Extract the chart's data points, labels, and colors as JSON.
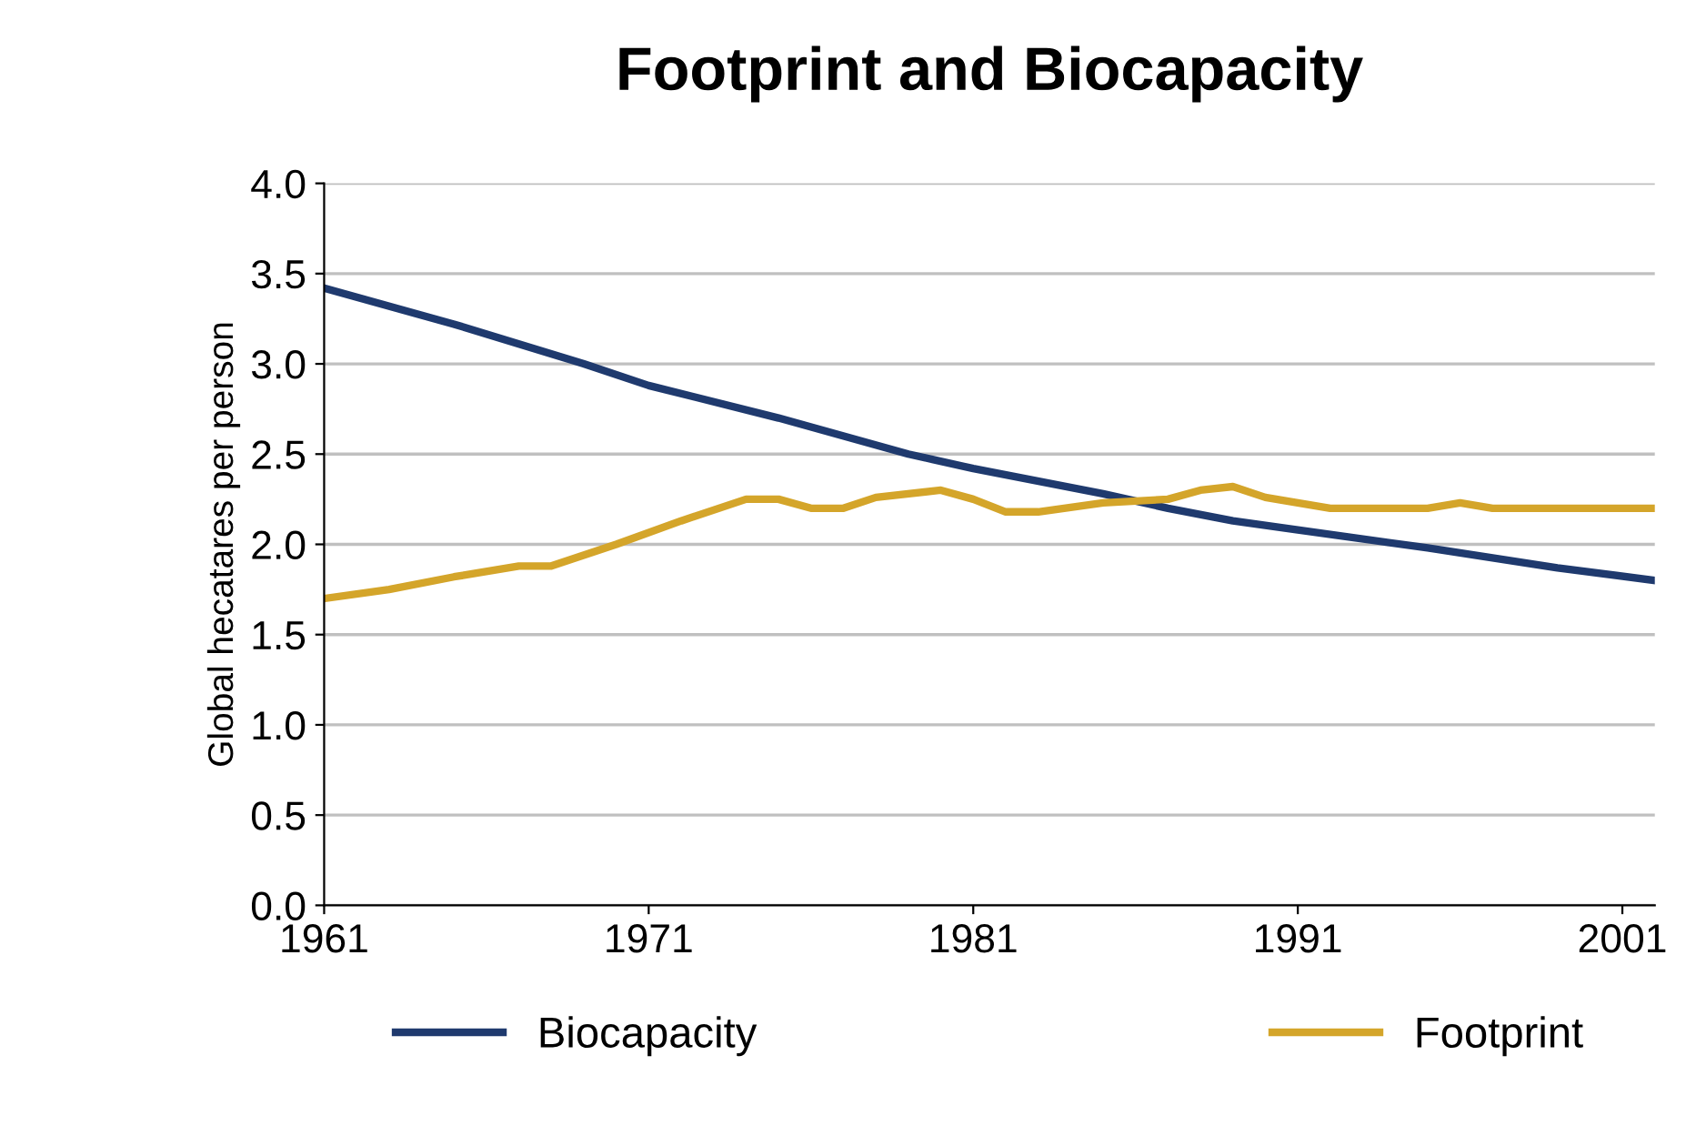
{
  "chart_data": {
    "type": "line",
    "title": "Footprint and Biocapacity",
    "ylabel": "Global hecatares per person",
    "xlim": [
      1961,
      2002
    ],
    "xticks": [
      1961,
      1971,
      1981,
      1991,
      2001
    ],
    "ylim": [
      0,
      4
    ],
    "yticks": [
      {
        "value": 0,
        "label": "0.0"
      },
      {
        "value": 0.5,
        "label": "0.5"
      },
      {
        "value": 1,
        "label": "1.0"
      },
      {
        "value": 1.5,
        "label": "1.5"
      },
      {
        "value": 2,
        "label": "2.0"
      },
      {
        "value": 2.5,
        "label": "2.5"
      },
      {
        "value": 3,
        "label": "3.0"
      },
      {
        "value": 3.5,
        "label": "3.5"
      },
      {
        "value": 4,
        "label": "4.0"
      }
    ],
    "grid": "y",
    "legend": "bottom",
    "marker": "none",
    "line_style": "solid",
    "series": [
      {
        "name": "Biocapacity",
        "color": "#1f3a6e",
        "x": [
          1961,
          1965,
          1969,
          1971,
          1975,
          1979,
          1981,
          1985,
          1987,
          1989,
          1991,
          1995,
          1999,
          2002
        ],
        "values": [
          3.42,
          3.22,
          3.0,
          2.88,
          2.7,
          2.5,
          2.42,
          2.28,
          2.2,
          2.13,
          2.08,
          1.98,
          1.87,
          1.8
        ]
      },
      {
        "name": "Footprint",
        "color": "#d4a52a",
        "x": [
          1961,
          1963,
          1965,
          1967,
          1968,
          1970,
          1972,
          1974,
          1975,
          1976,
          1977,
          1978,
          1980,
          1981,
          1982,
          1983,
          1985,
          1987,
          1988,
          1989,
          1990,
          1992,
          1995,
          1996,
          1997,
          2002
        ],
        "values": [
          1.7,
          1.75,
          1.82,
          1.88,
          1.88,
          2.0,
          2.13,
          2.25,
          2.25,
          2.2,
          2.2,
          2.26,
          2.3,
          2.25,
          2.18,
          2.18,
          2.23,
          2.25,
          2.3,
          2.32,
          2.26,
          2.2,
          2.2,
          2.23,
          2.2,
          2.2
        ]
      }
    ]
  }
}
